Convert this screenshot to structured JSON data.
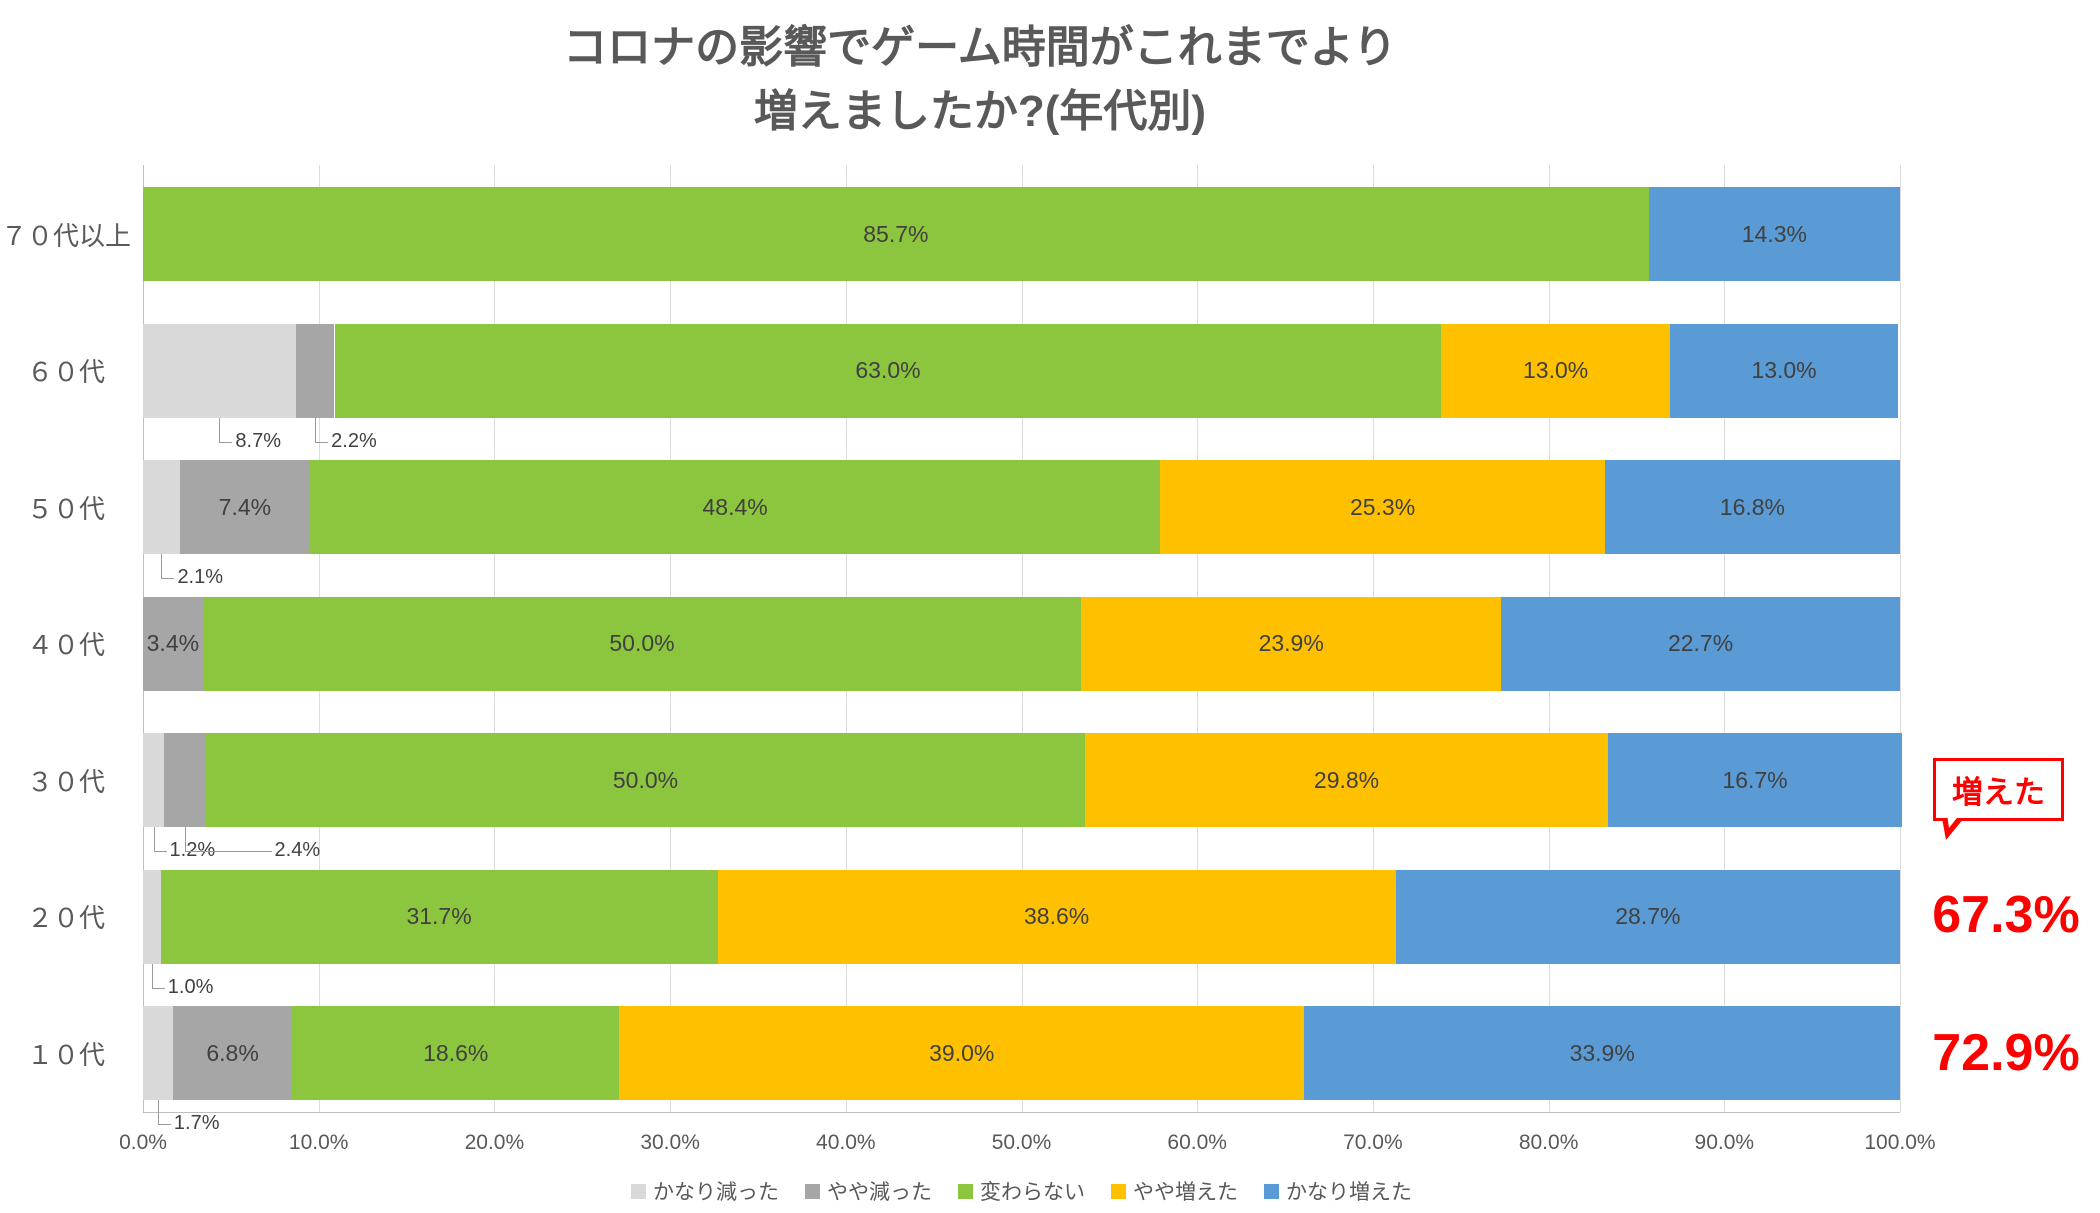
{
  "title": {
    "line1": "コロナの影響でゲーム時間がこれまでより",
    "line2": "増えましたか?(年代別)"
  },
  "annotations": {
    "callout": "増えた",
    "value_20s": "67.3%",
    "value_10s": "72.9%"
  },
  "chart_data": {
    "type": "bar",
    "orientation": "horizontal",
    "stacked": true,
    "title": "コロナの影響でゲーム時間がこれまでより増えましたか?(年代別)",
    "xlabel": "",
    "ylabel": "",
    "xlim": [
      0,
      100
    ],
    "grid": true,
    "legend_position": "bottom",
    "x_ticks": [
      "0.0%",
      "10.0%",
      "20.0%",
      "30.0%",
      "40.0%",
      "50.0%",
      "60.0%",
      "70.0%",
      "80.0%",
      "90.0%",
      "100.0%"
    ],
    "legend": [
      {
        "name": "かなり減った",
        "color": "#d9d9d9"
      },
      {
        "name": "やや減った",
        "color": "#a6a6a6"
      },
      {
        "name": "変わらない",
        "color": "#8cc63e"
      },
      {
        "name": "やや増えた",
        "color": "#ffc000"
      },
      {
        "name": "かなり増えた",
        "color": "#5b9bd5"
      }
    ],
    "categories": [
      "７０代以上",
      "６０代",
      "５０代",
      "４０代",
      "３０代",
      "２０代",
      "１０代"
    ],
    "rows": [
      {
        "category": "７０代以上",
        "values": [
          0,
          0,
          85.7,
          0,
          14.3
        ],
        "inside_labels": [
          "",
          "",
          "85.7%",
          "",
          "14.3%"
        ],
        "below_labels": []
      },
      {
        "category": "６０代",
        "values": [
          8.7,
          2.2,
          63.0,
          13.0,
          13.0
        ],
        "inside_labels": [
          "",
          "",
          "63.0%",
          "13.0%",
          "13.0%"
        ],
        "below_labels": [
          {
            "text": "8.7%",
            "segment": 0
          },
          {
            "text": "2.2%",
            "segment": 1
          }
        ]
      },
      {
        "category": "５０代",
        "values": [
          2.1,
          7.4,
          48.4,
          25.3,
          16.8
        ],
        "inside_labels": [
          "",
          "7.4%",
          "48.4%",
          "25.3%",
          "16.8%"
        ],
        "below_labels": [
          {
            "text": "2.1%",
            "segment": 0
          }
        ]
      },
      {
        "category": "４０代",
        "values": [
          0,
          3.4,
          50.0,
          23.9,
          22.7
        ],
        "inside_labels": [
          "",
          "3.4%",
          "50.0%",
          "23.9%",
          "22.7%"
        ],
        "below_labels": []
      },
      {
        "category": "３０代",
        "values": [
          1.2,
          2.4,
          50.0,
          29.8,
          16.7
        ],
        "inside_labels": [
          "",
          "",
          "50.0%",
          "29.8%",
          "16.7%"
        ],
        "below_labels": [
          {
            "text": "1.2%",
            "segment": 0
          },
          {
            "text": "2.4%",
            "segment": 1
          }
        ]
      },
      {
        "category": "２０代",
        "values": [
          1.0,
          0,
          31.7,
          38.6,
          28.7
        ],
        "inside_labels": [
          "",
          "",
          "31.7%",
          "38.6%",
          "28.7%"
        ],
        "below_labels": [
          {
            "text": "1.0%",
            "segment": 0
          }
        ]
      },
      {
        "category": "１０代",
        "values": [
          1.7,
          6.8,
          18.6,
          39.0,
          33.9
        ],
        "inside_labels": [
          "",
          "6.8%",
          "18.6%",
          "39.0%",
          "33.9%"
        ],
        "below_labels": [
          {
            "text": "1.7%",
            "segment": 0
          }
        ]
      }
    ]
  }
}
